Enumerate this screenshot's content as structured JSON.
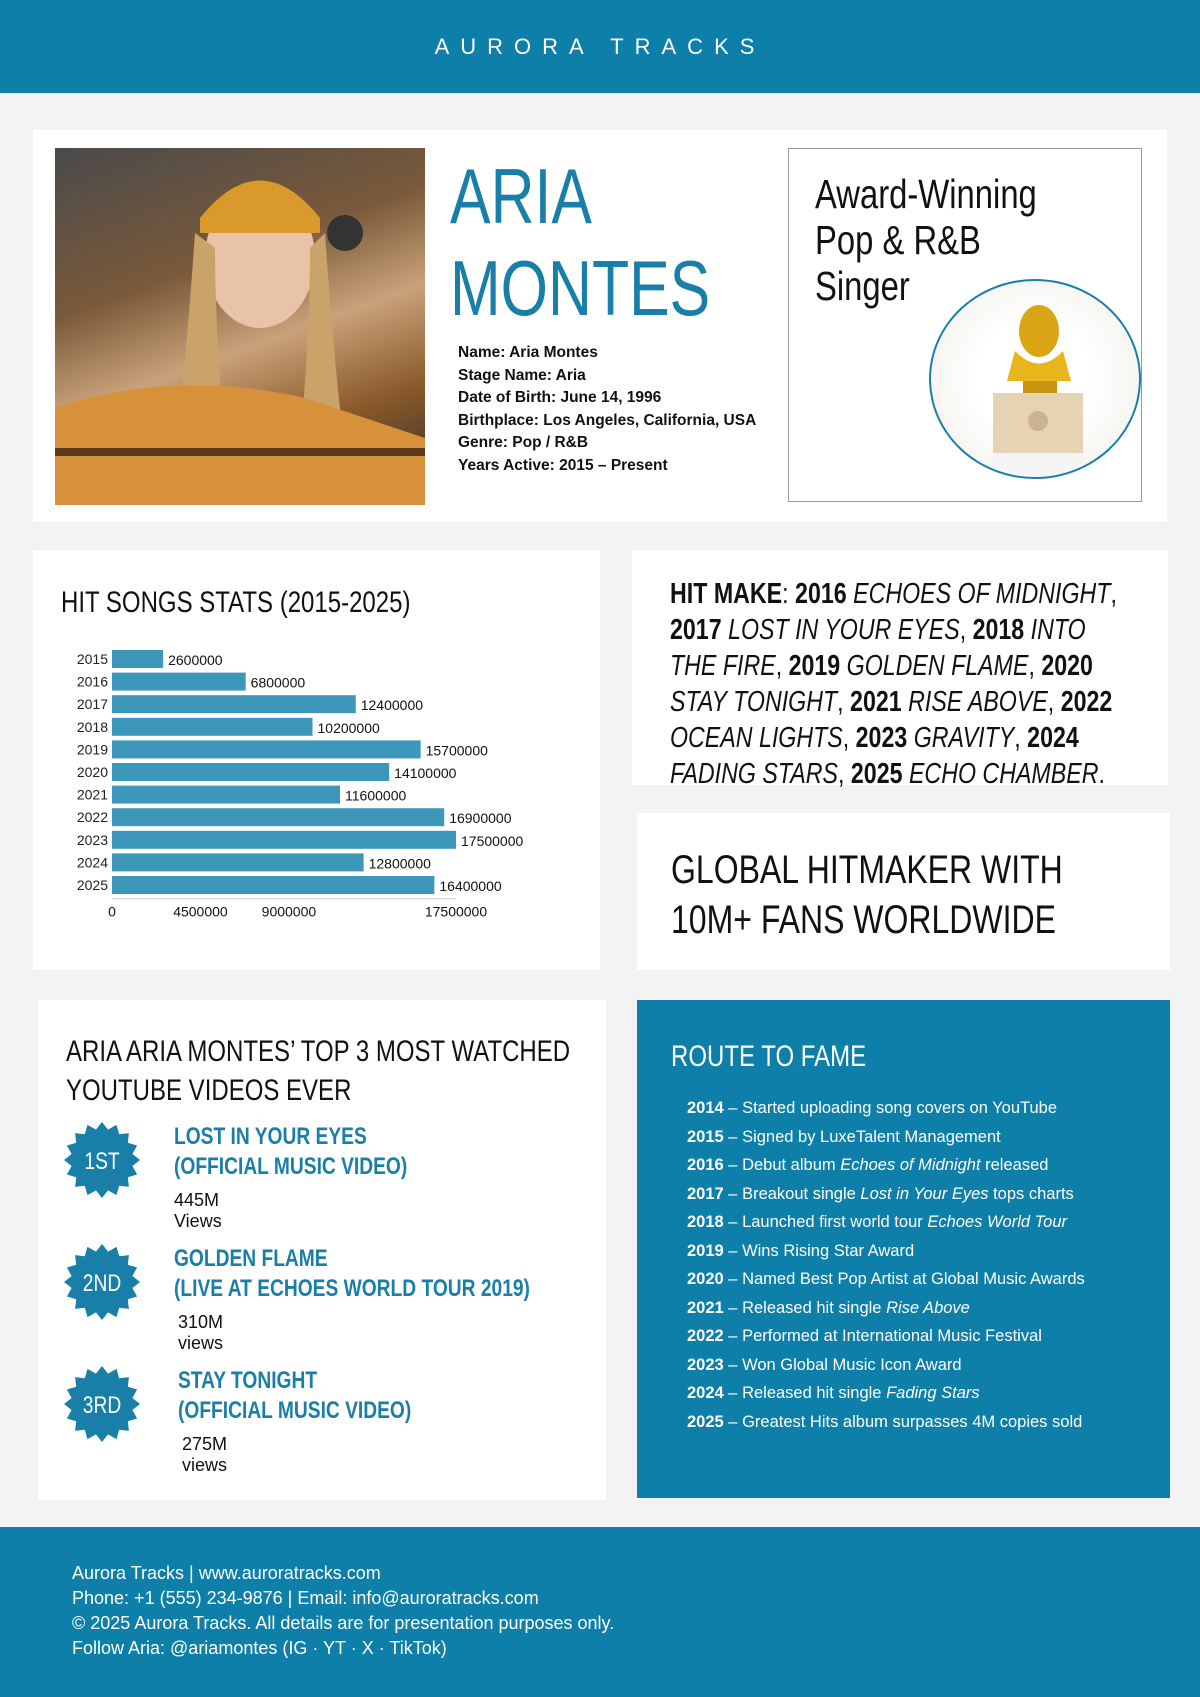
{
  "header": {
    "brand": "AURORA TRACKS"
  },
  "bio": {
    "name_line1": "ARIA",
    "name_line2": "MONTES",
    "facts": [
      "Name: Aria Montes",
      "Stage Name: Aria",
      "Date of Birth: June 14, 1996",
      "Birthplace: Los Angeles, California, USA",
      "Genre: Pop / R&B",
      "Years Active: 2015 – Present"
    ],
    "award_title": [
      "Award-Winning",
      "Pop & R&B",
      "Singer"
    ]
  },
  "colors": {
    "brand": "#0e7fa9",
    "accent": "#1a7fa8",
    "bar": "#3d97bb",
    "background": "#f3f3f3"
  },
  "chart_data": {
    "type": "bar",
    "orientation": "horizontal",
    "title": "HIT SONGS STATS (2015-2025)",
    "categories": [
      "2015",
      "2016",
      "2017",
      "2018",
      "2019",
      "2020",
      "2021",
      "2022",
      "2023",
      "2024",
      "2025"
    ],
    "values": [
      2600000,
      6800000,
      12400000,
      10200000,
      15700000,
      14100000,
      11600000,
      16900000,
      17500000,
      12800000,
      16400000
    ],
    "xticks": [
      0,
      4500000,
      9000000,
      17500000
    ],
    "xlim": [
      0,
      17500000
    ],
    "grid": false
  },
  "hits": {
    "label": "HIT MAKE",
    "items": [
      {
        "year": "2016",
        "title": "Echoes of Midnight"
      },
      {
        "year": "2017",
        "title": "Lost in Your Eyes"
      },
      {
        "year": "2018",
        "title": "Into the Fire"
      },
      {
        "year": "2019",
        "title": "Golden Flame"
      },
      {
        "year": "2020",
        "title": "Stay Tonight"
      },
      {
        "year": "2021",
        "title": "Rise Above"
      },
      {
        "year": "2022",
        "title": "Ocean Lights"
      },
      {
        "year": "2023",
        "title": "Gravity"
      },
      {
        "year": "2024",
        "title": "Fading Stars"
      },
      {
        "year": "2025",
        "title": "Echo Chamber"
      }
    ]
  },
  "global": {
    "text": "GLOBAL HITMAKER WITH 10M+ FANS WORLDWIDE"
  },
  "youtube": {
    "title": "ARIA ARIA MONTES’ TOP 3 MOST WATCHED YOUTUBE VIDEOS EVER",
    "videos": [
      {
        "rank": "1ST",
        "line1": "LOST IN YOUR EYES",
        "line2": "(OFFICIAL MUSIC VIDEO)",
        "views": "445M Views"
      },
      {
        "rank": "2ND",
        "line1": "GOLDEN FLAME",
        "line2": "(LIVE AT ECHOES WORLD TOUR 2019)",
        "views": "310M views"
      },
      {
        "rank": "3RD",
        "line1": "STAY TONIGHT",
        "line2": "(OFFICIAL MUSIC VIDEO)",
        "views": "275M views"
      }
    ]
  },
  "route": {
    "title": "ROUTE TO FAME",
    "items": [
      {
        "year": "2014",
        "pre": "Started uploading song covers on YouTube",
        "em": "",
        "post": ""
      },
      {
        "year": "2015",
        "pre": "Signed by LuxeTalent Management",
        "em": "",
        "post": ""
      },
      {
        "year": "2016",
        "pre": "Debut album ",
        "em": "Echoes of Midnight",
        "post": " released"
      },
      {
        "year": "2017",
        "pre": "Breakout single ",
        "em": "Lost in Your Eyes",
        "post": " tops charts"
      },
      {
        "year": "2018",
        "pre": "Launched first world tour ",
        "em": "Echoes World Tour",
        "post": ""
      },
      {
        "year": "2019",
        "pre": "Wins Rising Star Award",
        "em": "",
        "post": ""
      },
      {
        "year": "2020",
        "pre": "Named Best Pop Artist at Global Music Awards",
        "em": "",
        "post": ""
      },
      {
        "year": "2021",
        "pre": "Released hit single ",
        "em": "Rise Above",
        "post": ""
      },
      {
        "year": "2022",
        "pre": "Performed at International Music Festival",
        "em": "",
        "post": ""
      },
      {
        "year": "2023",
        "pre": "Won Global Music Icon Award",
        "em": "",
        "post": ""
      },
      {
        "year": "2024",
        "pre": "Released hit single ",
        "em": "Fading Stars",
        "post": ""
      },
      {
        "year": "2025",
        "pre": "Greatest Hits album surpasses 4M copies sold",
        "em": "",
        "post": ""
      }
    ]
  },
  "footer": {
    "lines": [
      "Aurora Tracks | www.auroratracks.com",
      "Phone: +1 (555) 234-9876 | Email: info@auroratracks.com",
      "© 2025 Aurora Tracks. All details are for presentation purposes only.",
      "Follow Aria: @ariamontes (IG · YT · X · TikTok)"
    ]
  }
}
